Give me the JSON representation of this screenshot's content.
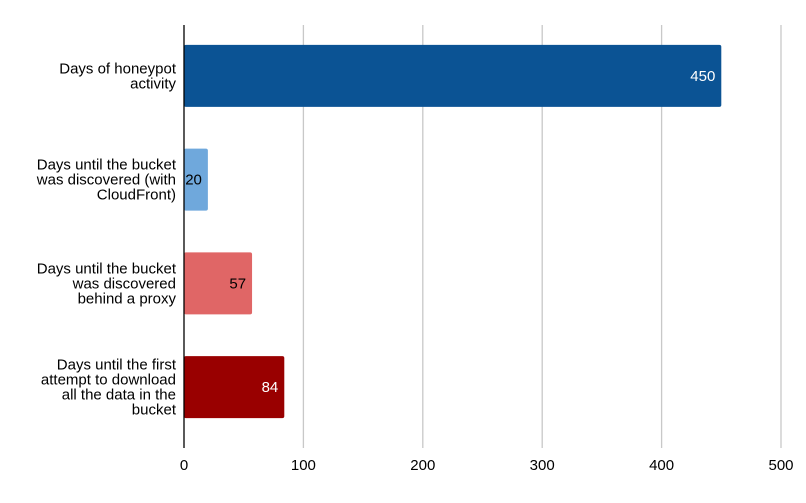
{
  "chart_data": {
    "type": "bar",
    "orientation": "horizontal",
    "categories": [
      [
        "Days of honeypot",
        "activity"
      ],
      [
        "Days until the bucket",
        "was discovered (with",
        "CloudFront)"
      ],
      [
        "Days until the bucket",
        "was discovered",
        "behind a proxy"
      ],
      [
        "Days until the first",
        "attempt to download",
        "all the data in the",
        "bucket"
      ]
    ],
    "values": [
      450,
      20,
      57,
      84
    ],
    "data_labels": [
      "450",
      "20",
      "57",
      "84"
    ],
    "bar_colors": [
      "#0b5394",
      "#6fa8dc",
      "#e06666",
      "#990000"
    ],
    "label_colors": [
      "#ffffff",
      "#000000",
      "#000000",
      "#ffffff"
    ],
    "xlim": [
      0,
      500
    ],
    "x_ticks": [
      0,
      100,
      200,
      300,
      400,
      500
    ],
    "grid": "vertical",
    "legend": "none"
  }
}
